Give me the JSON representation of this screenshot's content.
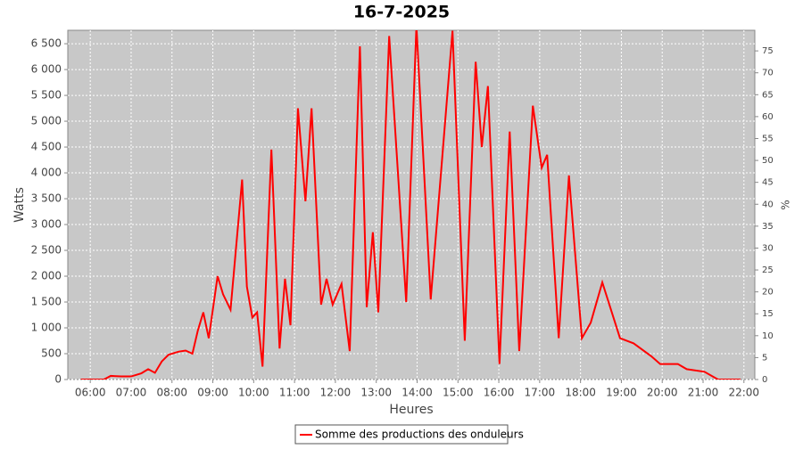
{
  "chart_data": {
    "type": "line",
    "title": "16-7-2025",
    "x_label": "Heures",
    "y_label": "Watts",
    "y2_label": "%",
    "x": [
      "05:46",
      "06:00",
      "06:20",
      "06:30",
      "06:45",
      "07:00",
      "07:15",
      "07:25",
      "07:35",
      "07:45",
      "07:55",
      "08:10",
      "08:20",
      "08:30",
      "08:38",
      "08:46",
      "08:54",
      "09:07",
      "09:15",
      "09:26",
      "09:43",
      "09:50",
      "09:58",
      "10:05",
      "10:13",
      "10:26",
      "10:38",
      "10:46",
      "10:54",
      "11:05",
      "11:16",
      "11:25",
      "11:39",
      "11:47",
      "11:56",
      "12:09",
      "12:21",
      "12:36",
      "12:46",
      "12:55",
      "13:03",
      "13:19",
      "13:44",
      "13:59",
      "14:20",
      "14:52",
      "15:10",
      "15:26",
      "15:35",
      "15:44",
      "16:01",
      "16:16",
      "16:30",
      "16:50",
      "17:03",
      "17:11",
      "17:28",
      "17:43",
      "18:02",
      "18:15",
      "18:32",
      "18:58",
      "19:18",
      "19:44",
      "19:57",
      "20:10",
      "20:23",
      "20:36",
      "21:02",
      "21:22",
      "21:55"
    ],
    "series": [
      {
        "name": "Somme des productions des onduleurs",
        "color": "#ff0000",
        "values": [
          0,
          0,
          0,
          70,
          60,
          60,
          120,
          200,
          130,
          350,
          480,
          540,
          560,
          500,
          950,
          1300,
          800,
          2000,
          1650,
          1350,
          3870,
          1800,
          1200,
          1300,
          250,
          4450,
          600,
          1950,
          1050,
          5250,
          3450,
          5250,
          1450,
          1950,
          1450,
          1850,
          550,
          6450,
          1400,
          2850,
          1300,
          6650,
          1500,
          6850,
          1550,
          6750,
          750,
          6150,
          4500,
          5680,
          300,
          4800,
          550,
          5300,
          4100,
          4350,
          800,
          3950,
          800,
          1100,
          1880,
          800,
          700,
          450,
          300,
          300,
          300,
          200,
          150,
          0,
          0
        ]
      }
    ],
    "xlim": [
      "05:27",
      "22:16"
    ],
    "xticks": [
      "06:00",
      "07:00",
      "08:00",
      "09:00",
      "10:00",
      "11:00",
      "12:00",
      "13:00",
      "14:00",
      "15:00",
      "16:00",
      "17:00",
      "18:00",
      "19:00",
      "20:00",
      "21:00",
      "22:00"
    ],
    "ylim": [
      0,
      6760
    ],
    "yticks": [
      0,
      500,
      {
        "value": 1000,
        "label": "1 000"
      },
      {
        "value": 1500,
        "label": "1 500"
      },
      {
        "value": 2000,
        "label": "2 000"
      },
      {
        "value": 2500,
        "label": "2 500"
      },
      {
        "value": 3000,
        "label": "3 000"
      },
      {
        "value": 3500,
        "label": "3 500"
      },
      {
        "value": 4000,
        "label": "4 000"
      },
      {
        "value": 4500,
        "label": "4 500"
      },
      {
        "value": 5000,
        "label": "5 000"
      },
      {
        "value": 5500,
        "label": "5 500"
      },
      {
        "value": 6000,
        "label": "6 000"
      },
      {
        "value": 6500,
        "label": "6 500"
      }
    ],
    "y2lim": [
      0,
      79.7
    ],
    "y2ticks": [
      0,
      5,
      10,
      15,
      20,
      25,
      30,
      35,
      40,
      45,
      50,
      55,
      60,
      65,
      70,
      75
    ],
    "grid": true
  }
}
